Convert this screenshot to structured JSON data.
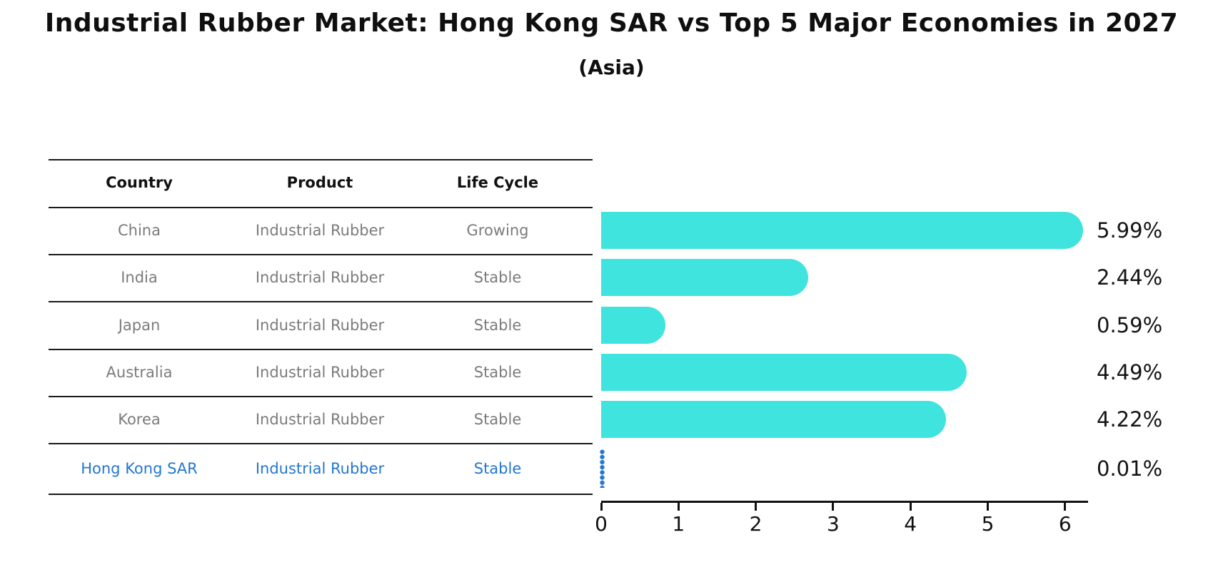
{
  "title": "Industrial Rubber Market: Hong Kong SAR vs Top 5 Major Economies in 2027",
  "subtitle": "(Asia)",
  "table": {
    "headers": {
      "country": "Country",
      "product": "Product",
      "life_cycle": "Life Cycle"
    },
    "rows": [
      {
        "country": "China",
        "product": "Industrial Rubber",
        "life_cycle": "Growing",
        "value_label": "5.99%",
        "highlight": false
      },
      {
        "country": "India",
        "product": "Industrial Rubber",
        "life_cycle": "Stable",
        "value_label": "2.44%",
        "highlight": false
      },
      {
        "country": "Japan",
        "product": "Industrial Rubber",
        "life_cycle": "Stable",
        "value_label": "0.59%",
        "highlight": false
      },
      {
        "country": "Australia",
        "product": "Industrial Rubber",
        "life_cycle": "Stable",
        "value_label": "4.49%",
        "highlight": false
      },
      {
        "country": "Korea",
        "product": "Industrial Rubber",
        "life_cycle": "Stable",
        "value_label": "4.22%",
        "highlight": false
      },
      {
        "country": "Hong Kong SAR",
        "product": "Industrial Rubber",
        "life_cycle": "Stable",
        "value_label": "0.01%",
        "highlight": true
      }
    ]
  },
  "chart_data": {
    "type": "bar",
    "orientation": "horizontal",
    "title": "Industrial Rubber Market: Hong Kong SAR vs Top 5 Major Economies in 2027",
    "subtitle": "(Asia)",
    "categories": [
      "China",
      "India",
      "Japan",
      "Australia",
      "Korea",
      "Hong Kong SAR"
    ],
    "values": [
      5.99,
      2.44,
      0.59,
      4.49,
      4.22,
      0.01
    ],
    "value_labels": [
      "5.99%",
      "2.44%",
      "0.59%",
      "4.49%",
      "4.22%",
      "0.01%"
    ],
    "unit": "percent",
    "xlim": [
      0,
      6.3
    ],
    "xticks": [
      0,
      1,
      2,
      3,
      4,
      5,
      6
    ],
    "grid": false,
    "legend": false,
    "bar_color": "#40E4DE",
    "highlight_color": "#2377CF",
    "highlight_index": 5
  },
  "colors": {
    "bar": "#40E4DE",
    "highlight_blue": "#2377CF",
    "row_text_gray": "#7B7B7B",
    "heading_text": "#111111",
    "axis": "#1A1A1A",
    "background": "#FFFFFF"
  }
}
